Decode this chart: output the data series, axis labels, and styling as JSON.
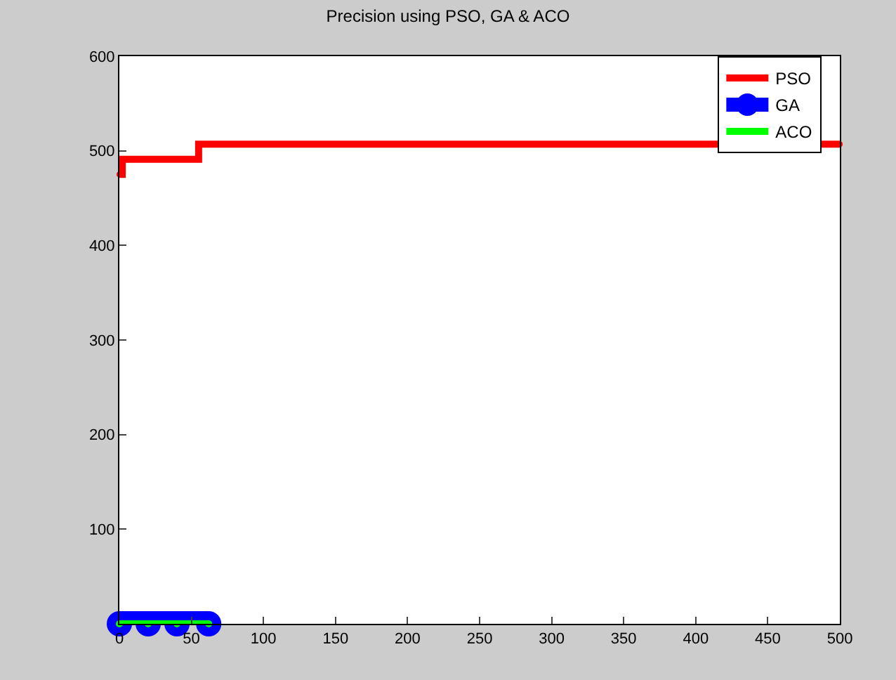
{
  "chart_data": {
    "type": "line",
    "title": "Precision using PSO, GA & ACO",
    "xlim": [
      0,
      500
    ],
    "xticks": [
      0,
      50,
      100,
      150,
      200,
      250,
      300,
      350,
      400,
      450,
      500
    ],
    "ylim": [
      0,
      600
    ],
    "yticks": [
      100,
      200,
      300,
      400,
      500,
      600
    ],
    "legend": "top right",
    "marker": "circle",
    "series": [
      {
        "name": "PSO",
        "color": "#ff0000",
        "type": "step",
        "x": [
          0,
          2,
          55,
          500
        ],
        "values": [
          475,
          491,
          507,
          507
        ]
      },
      {
        "name": "GA",
        "color": "#0000ff",
        "x": [
          0,
          20,
          40,
          62
        ],
        "values": [
          0,
          0,
          0,
          0
        ]
      },
      {
        "name": "ACO",
        "color": "#00ff00",
        "x": [
          0,
          20,
          40,
          62
        ],
        "values": [
          0,
          0,
          0,
          0
        ]
      }
    ]
  }
}
